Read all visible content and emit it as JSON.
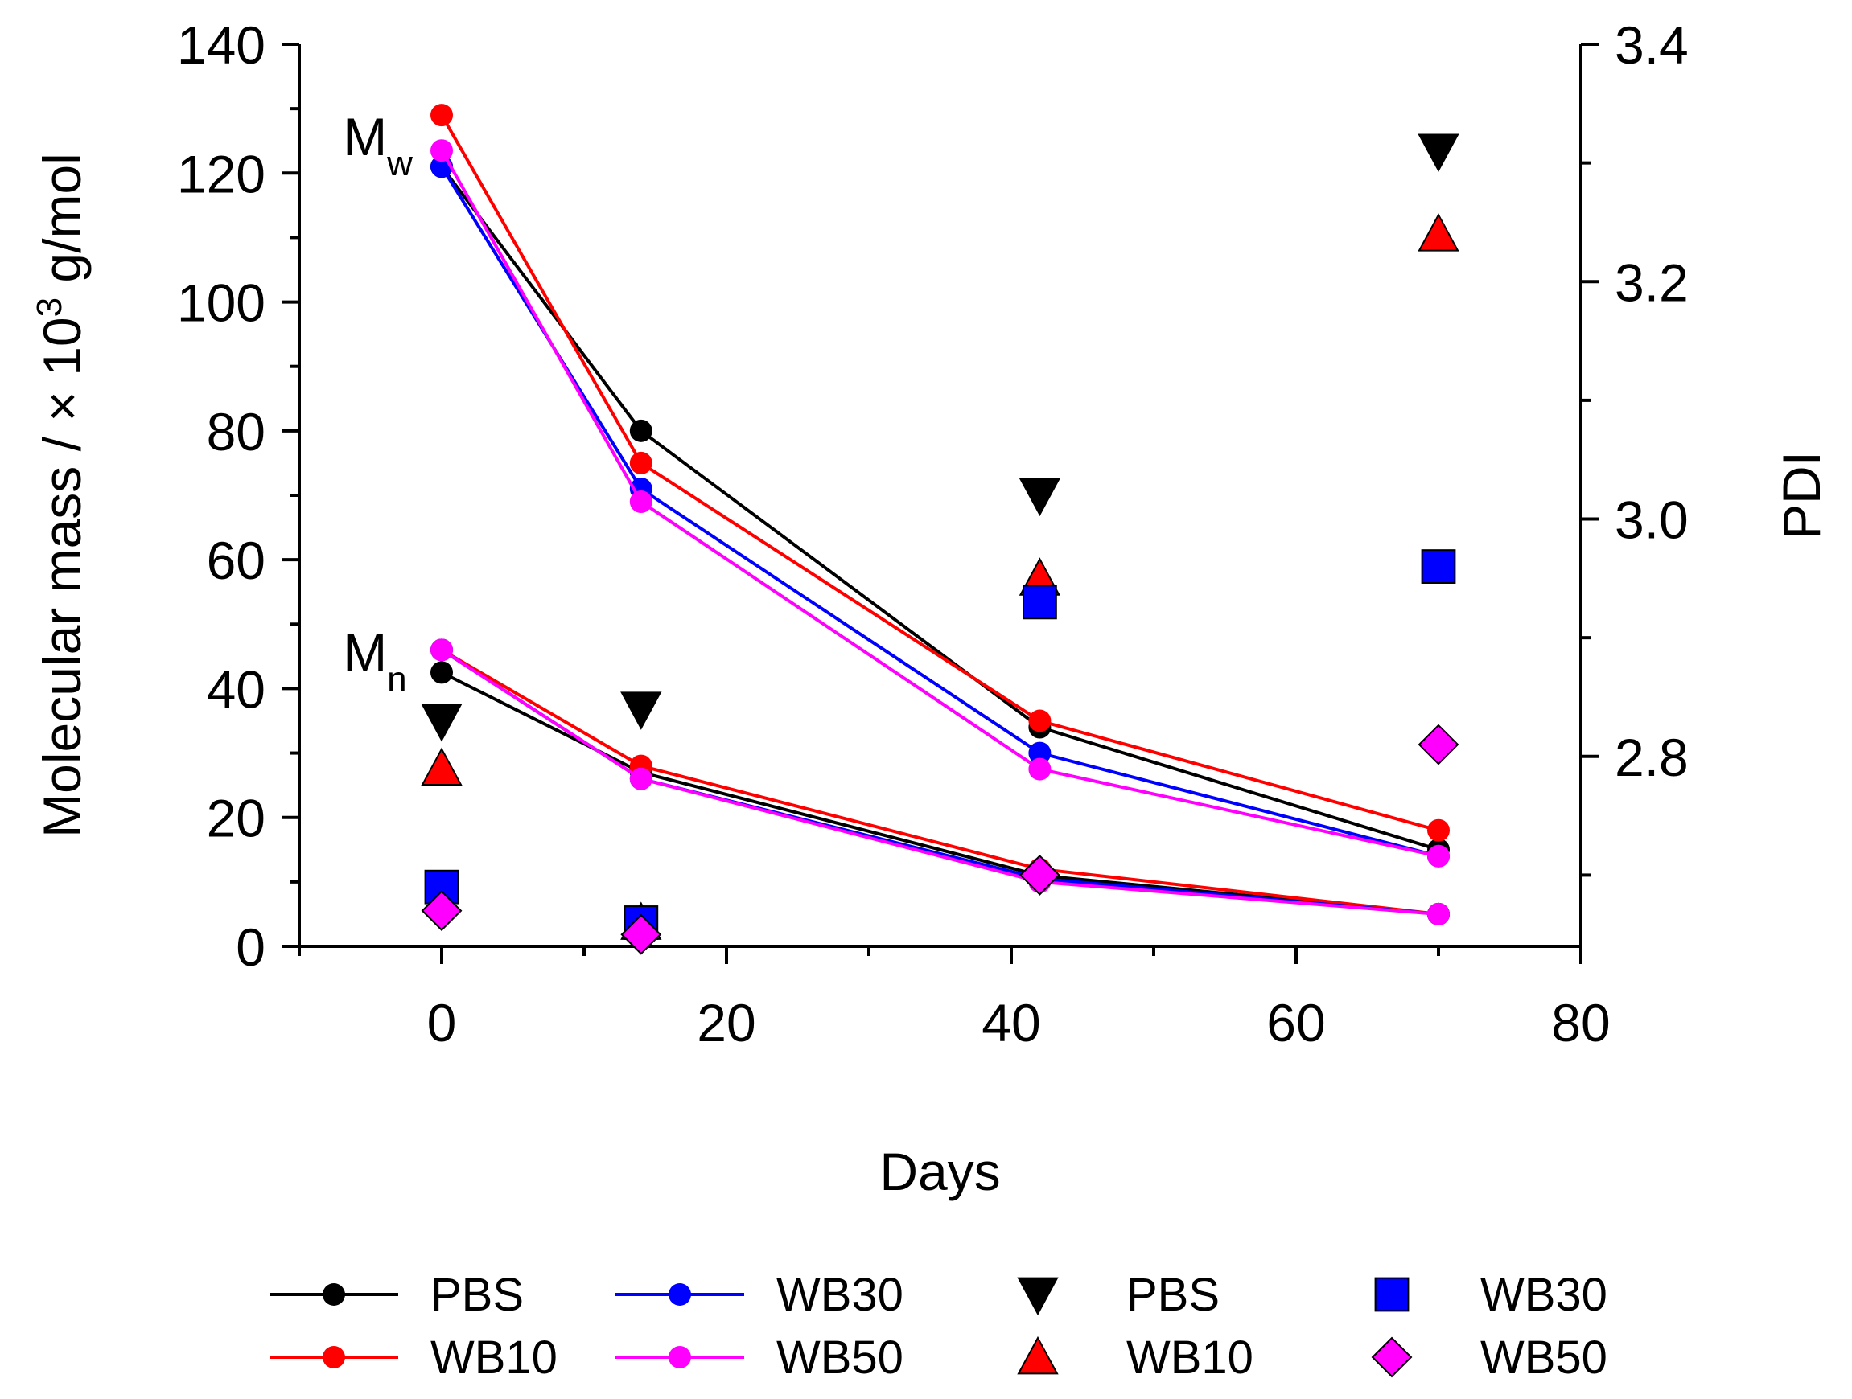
{
  "chart_data": {
    "type": "line",
    "xlabel": "Days",
    "ylabel": "Molecular mass / × 10",
    "ylabel_superscript": "3",
    "ylabel_suffix": " g/mol",
    "y2label": "PDI",
    "xlim": [
      -10,
      80
    ],
    "ylim": [
      0,
      140
    ],
    "y2lim": [
      2.64,
      3.4
    ],
    "xticks": [
      "0",
      "20",
      "40",
      "60",
      "80"
    ],
    "yticks": [
      "0",
      "20",
      "40",
      "60",
      "80",
      "100",
      "120",
      "140"
    ],
    "y2ticks": [
      "2.8",
      "3.0",
      "3.2",
      "3.4"
    ],
    "annotations": [
      {
        "main": "M",
        "sub": "w",
        "x": -4,
        "y": 127
      },
      {
        "main": "M",
        "sub": "n",
        "x": -4,
        "y": 47
      }
    ],
    "line_series": [
      {
        "name": "PBS",
        "color": "#000000",
        "x": [
          0,
          14,
          42,
          70
        ],
        "mw": [
          121,
          80,
          34,
          15
        ],
        "mn": [
          42.5,
          27,
          11,
          5
        ]
      },
      {
        "name": "WB10",
        "color": "#ff0000",
        "x": [
          0,
          14,
          42,
          70
        ],
        "mw": [
          129,
          75,
          35,
          18
        ],
        "mn": [
          46,
          28,
          12,
          5
        ]
      },
      {
        "name": "WB30",
        "color": "#0000ff",
        "x": [
          0,
          14,
          42,
          70
        ],
        "mw": [
          121,
          71,
          30,
          14
        ],
        "mn": [
          46,
          26,
          10.5,
          5
        ]
      },
      {
        "name": "WB50",
        "color": "#ff00ff",
        "x": [
          0,
          14,
          42,
          70
        ],
        "mw": [
          123.5,
          69,
          27.5,
          14
        ],
        "mn": [
          46,
          26,
          10,
          5
        ]
      }
    ],
    "pdi_series": [
      {
        "name": "PBS",
        "marker": "triangle-down",
        "color": "#000000",
        "x": [
          0,
          14,
          42,
          70
        ],
        "pdi": [
          2.83,
          2.84,
          3.02,
          3.31
        ]
      },
      {
        "name": "WB10",
        "marker": "triangle-up",
        "color": "#ff0000",
        "x": [
          0,
          14,
          42,
          70
        ],
        "pdi": [
          2.79,
          2.66,
          2.95,
          3.24
        ]
      },
      {
        "name": "WB30",
        "marker": "square",
        "color": "#0000ff",
        "x": [
          0,
          14,
          42,
          70
        ],
        "pdi": [
          2.69,
          2.66,
          2.93,
          2.96
        ]
      },
      {
        "name": "WB50",
        "marker": "diamond",
        "color": "#ff00ff",
        "x": [
          0,
          14,
          42,
          70
        ],
        "pdi": [
          2.67,
          2.65,
          2.7,
          2.81
        ]
      }
    ],
    "legend": {
      "placement": "bottom",
      "entries": [
        {
          "label": "PBS",
          "kind": "line",
          "color": "#000000"
        },
        {
          "label": "WB30",
          "kind": "line",
          "color": "#0000ff"
        },
        {
          "label": "PBS",
          "kind": "triangle-down",
          "color": "#000000"
        },
        {
          "label": "WB30",
          "kind": "square",
          "color": "#0000ff"
        },
        {
          "label": "WB10",
          "kind": "line",
          "color": "#ff0000"
        },
        {
          "label": "WB50",
          "kind": "line",
          "color": "#ff00ff"
        },
        {
          "label": "WB10",
          "kind": "triangle-up",
          "color": "#ff0000"
        },
        {
          "label": "WB50",
          "kind": "diamond",
          "color": "#ff00ff"
        }
      ]
    }
  }
}
